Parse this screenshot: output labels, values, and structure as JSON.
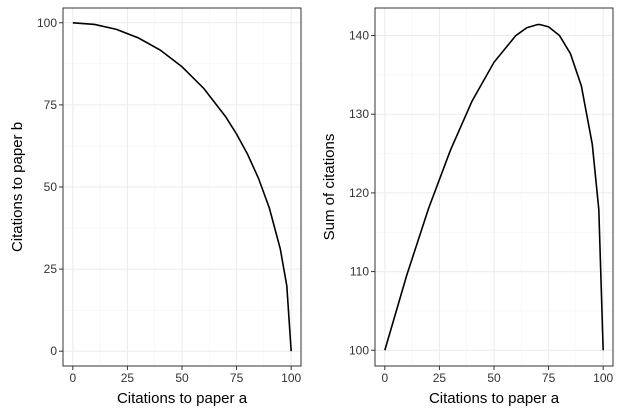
{
  "chart_data": [
    {
      "type": "line",
      "title": "",
      "xlabel": "Citations to paper a",
      "ylabel": "Citations to paper b",
      "xlim": [
        -4.5,
        104.5
      ],
      "ylim": [
        -4.5,
        104.5
      ],
      "xticks": [
        0,
        25,
        50,
        75,
        100
      ],
      "yticks": [
        0,
        25,
        50,
        75,
        100
      ],
      "x_tick_labels": [
        "0",
        "25",
        "50",
        "75",
        "100"
      ],
      "y_tick_labels": [
        "0",
        "25",
        "50",
        "75",
        "100"
      ],
      "grid": true,
      "series": [
        {
          "x": [
            0,
            10,
            20,
            30,
            40,
            50,
            60,
            70,
            75,
            80,
            85,
            90,
            95,
            98,
            100
          ],
          "y": [
            100,
            99.5,
            98,
            95.4,
            91.7,
            86.6,
            80,
            71.4,
            66.1,
            60,
            52.7,
            43.6,
            31.2,
            19.9,
            0
          ]
        }
      ]
    },
    {
      "type": "line",
      "title": "",
      "xlabel": "Citations to paper a",
      "ylabel": "Sum of citations",
      "xlim": [
        -4.5,
        104.5
      ],
      "ylim": [
        98,
        143.5
      ],
      "xticks": [
        0,
        25,
        50,
        75,
        100
      ],
      "yticks": [
        100,
        110,
        120,
        130,
        140
      ],
      "x_tick_labels": [
        "0",
        "25",
        "50",
        "75",
        "100"
      ],
      "y_tick_labels": [
        "100",
        "110",
        "120",
        "130",
        "140"
      ],
      "grid": true,
      "series": [
        {
          "x": [
            0,
            10,
            20,
            30,
            40,
            50,
            60,
            65,
            70,
            71,
            75,
            80,
            85,
            90,
            95,
            98,
            100
          ],
          "y": [
            100,
            109.5,
            118,
            125.4,
            131.7,
            136.6,
            140,
            141,
            141.4,
            141.4,
            141.1,
            140,
            137.7,
            133.6,
            126.2,
            117.9,
            100
          ]
        }
      ]
    }
  ]
}
